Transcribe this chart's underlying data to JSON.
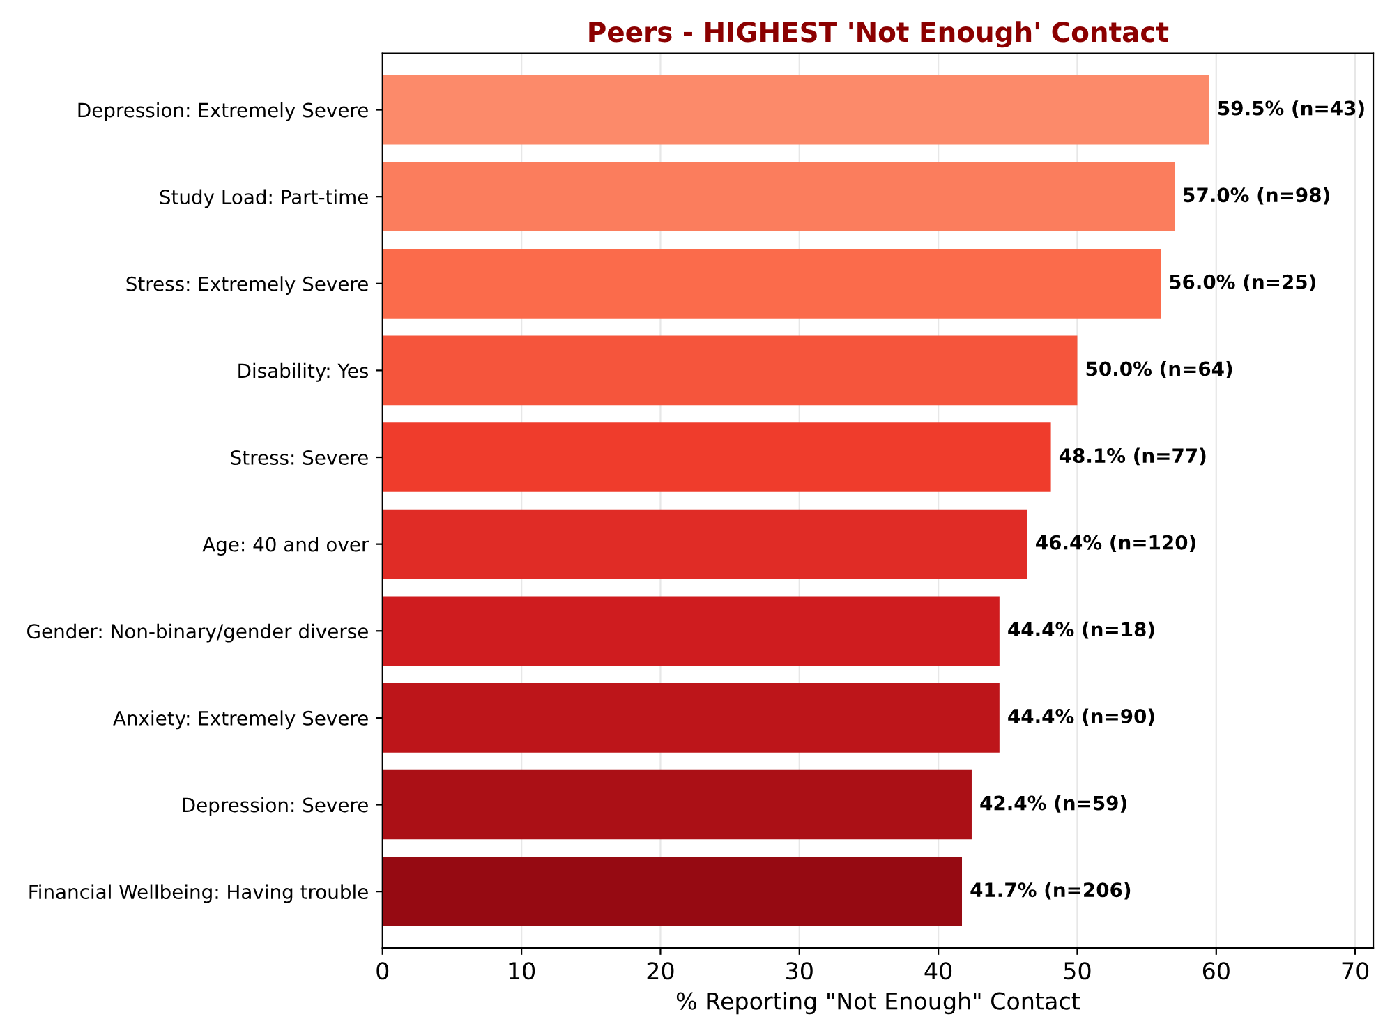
{
  "chart_data": {
    "type": "bar",
    "orientation": "horizontal",
    "title": "Peers - HIGHEST 'Not Enough' Contact",
    "xlabel": "% Reporting \"Not Enough\" Contact",
    "categories": [
      "Depression: Extremely Severe",
      "Study Load: Part-time",
      "Stress: Extremely Severe",
      "Disability: Yes",
      "Stress: Severe",
      "Age: 40 and over",
      "Gender: Non-binary/gender diverse",
      "Anxiety: Extremely Severe",
      "Depression: Severe",
      "Financial Wellbeing: Having trouble"
    ],
    "values": [
      59.5,
      57.0,
      56.0,
      50.0,
      48.1,
      46.4,
      44.4,
      44.4,
      42.4,
      41.7
    ],
    "value_labels": [
      "59.5% (n=43)",
      "57.0% (n=98)",
      "56.0% (n=25)",
      "50.0% (n=64)",
      "48.1% (n=77)",
      "46.4% (n=120)",
      "44.4% (n=18)",
      "44.4% (n=90)",
      "42.4% (n=59)",
      "41.7% (n=206)"
    ],
    "colors": [
      "#fc8a6a",
      "#fb7d5d",
      "#fb6b4b",
      "#f5553c",
      "#ef3c2c",
      "#e02c26",
      "#cf1c1f",
      "#bd151a",
      "#ab1016",
      "#960a12"
    ],
    "xlim": [
      0,
      71.3
    ],
    "xticks": [
      0,
      10,
      20,
      30,
      40,
      50,
      60,
      70
    ],
    "grid": "x"
  }
}
